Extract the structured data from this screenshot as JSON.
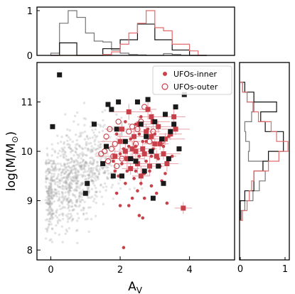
{
  "chart_data": [
    {
      "id": "main",
      "type": "scatter",
      "xlabel": "A",
      "xlabel_sub": "V",
      "ylabel": "log(M/M",
      "ylabel_symbol": "⊙",
      "ylabel_end": ")",
      "xlim": [
        -0.4,
        5.3
      ],
      "ylim": [
        7.8,
        11.8
      ],
      "xticks": [
        "0",
        "2",
        "4"
      ],
      "xtick_values": [
        0,
        2,
        4
      ],
      "yticks": [
        "8",
        "9",
        "10",
        "11"
      ],
      "ytick_values": [
        8,
        9,
        10,
        11
      ],
      "legend_position": "top-right",
      "legend": [
        {
          "label": "UFOs-inner",
          "marker": "filled-circle",
          "color": "#c8414a"
        },
        {
          "label": "UFOs-outer",
          "marker": "open-circle",
          "color": "#c8414a"
        }
      ],
      "series": [
        {
          "name": "UFOs-inner",
          "marker": "filled-square",
          "color": "#c8414a",
          "points": [
            [
              3.82,
              8.85
            ],
            [
              2.55,
              10.55
            ],
            [
              2.9,
              10.3
            ],
            [
              3.1,
              10.5
            ],
            [
              2.25,
              10.8
            ],
            [
              2.8,
              10.85
            ],
            [
              3.0,
              10.15
            ],
            [
              2.65,
              10.05
            ],
            [
              2.4,
              10.3
            ],
            [
              3.3,
              10.25
            ],
            [
              2.7,
              9.95
            ],
            [
              2.15,
              10.0
            ],
            [
              3.6,
              10.45
            ],
            [
              2.95,
              10.6
            ],
            [
              2.5,
              9.75
            ],
            [
              3.15,
              10.15
            ],
            [
              2.35,
              10.05
            ],
            [
              2.85,
              9.7
            ],
            [
              3.25,
              9.95
            ],
            [
              2.0,
              10.2
            ],
            [
              2.6,
              9.5
            ],
            [
              3.45,
              10.35
            ],
            [
              2.75,
              10.4
            ],
            [
              2.2,
              9.85
            ],
            [
              3.05,
              9.9
            ],
            [
              2.45,
              10.0
            ],
            [
              3.55,
              10.7
            ],
            [
              2.9,
              10.7
            ],
            [
              2.05,
              10.45
            ],
            [
              1.85,
              9.9
            ],
            [
              2.3,
              9.65
            ],
            [
              3.35,
              9.75
            ]
          ]
        },
        {
          "name": "UFOs-inner",
          "marker": "filled-circle",
          "color": "#c8414a",
          "points": [
            [
              2.45,
              10.1
            ],
            [
              2.65,
              10.2
            ],
            [
              2.95,
              10.05
            ],
            [
              3.1,
              9.85
            ],
            [
              2.3,
              10.25
            ],
            [
              2.55,
              9.9
            ],
            [
              2.75,
              10.2
            ],
            [
              2.2,
              9.6
            ],
            [
              2.05,
              9.75
            ],
            [
              2.85,
              9.6
            ],
            [
              3.25,
              10.1
            ],
            [
              2.6,
              9.35
            ],
            [
              2.4,
              9.45
            ],
            [
              1.95,
              9.5
            ],
            [
              2.15,
              9.35
            ],
            [
              2.5,
              9.2
            ],
            [
              2.35,
              9.05
            ],
            [
              2.9,
              9.3
            ],
            [
              3.05,
              9.15
            ],
            [
              2.7,
              9.05
            ],
            [
              2.25,
              8.9
            ],
            [
              2.0,
              8.9
            ],
            [
              2.55,
              8.7
            ],
            [
              1.9,
              9.15
            ],
            [
              2.65,
              8.65
            ],
            [
              3.35,
              8.95
            ],
            [
              3.2,
              9.4
            ],
            [
              2.1,
              8.05
            ],
            [
              1.8,
              9.8
            ],
            [
              2.8,
              10.45
            ],
            [
              3.4,
              10.3
            ],
            [
              3.0,
              10.35
            ],
            [
              2.45,
              10.55
            ],
            [
              2.6,
              10.7
            ],
            [
              2.15,
              10.6
            ],
            [
              1.9,
              10.35
            ],
            [
              2.35,
              9.85
            ],
            [
              2.9,
              9.9
            ],
            [
              3.15,
              9.7
            ],
            [
              2.75,
              9.8
            ],
            [
              2.55,
              10.35
            ],
            [
              2.25,
              10.1
            ],
            [
              1.85,
              9.6
            ],
            [
              2.7,
              9.55
            ],
            [
              3.3,
              9.55
            ],
            [
              2.45,
              9.6
            ],
            [
              2.1,
              10.05
            ],
            [
              2.85,
              10.0
            ],
            [
              3.5,
              9.9
            ],
            [
              2.0,
              9.95
            ]
          ]
        },
        {
          "name": "UFOs-outer",
          "marker": "open-circle",
          "color": "#c8414a",
          "points": [
            [
              1.6,
              10.3
            ],
            [
              1.75,
              10.05
            ],
            [
              1.65,
              9.8
            ],
            [
              1.85,
              10.15
            ],
            [
              2.25,
              10.4
            ],
            [
              1.95,
              10.6
            ],
            [
              1.55,
              10.0
            ],
            [
              2.6,
              10.6
            ],
            [
              2.85,
              10.2
            ],
            [
              2.05,
              9.85
            ],
            [
              1.8,
              9.9
            ],
            [
              2.35,
              10.5
            ],
            [
              1.7,
              10.45
            ],
            [
              2.95,
              10.4
            ],
            [
              2.45,
              10.15
            ],
            [
              3.2,
              10.2
            ],
            [
              1.9,
              9.7
            ],
            [
              2.7,
              10.9
            ],
            [
              1.45,
              9.95
            ],
            [
              2.5,
              10.45
            ]
          ]
        },
        {
          "name": "black squares",
          "marker": "filled-square",
          "color": "#1a1a1a",
          "points": [
            [
              0.25,
              11.55
            ],
            [
              3.85,
              11.15
            ],
            [
              0.05,
              10.5
            ],
            [
              1.25,
              10.55
            ],
            [
              1.65,
              10.95
            ],
            [
              1.75,
              10.85
            ],
            [
              2.5,
              11.0
            ],
            [
              2.8,
              11.05
            ],
            [
              3.0,
              10.6
            ],
            [
              3.3,
              10.75
            ],
            [
              3.6,
              10.9
            ],
            [
              2.15,
              10.2
            ],
            [
              2.6,
              10.55
            ],
            [
              3.2,
              10.25
            ],
            [
              3.45,
              10.4
            ],
            [
              2.9,
              10.0
            ],
            [
              3.7,
              10.05
            ],
            [
              2.3,
              9.85
            ],
            [
              1.9,
              10.45
            ],
            [
              2.75,
              10.3
            ],
            [
              3.1,
              9.7
            ],
            [
              1.5,
              9.75
            ],
            [
              2.05,
              9.5
            ],
            [
              2.45,
              9.8
            ],
            [
              3.4,
              9.85
            ],
            [
              1.05,
              9.35
            ],
            [
              1.0,
              9.15
            ],
            [
              1.8,
              9.5
            ],
            [
              2.95,
              9.05
            ],
            [
              3.25,
              9.35
            ],
            [
              1.6,
              10.1
            ],
            [
              2.7,
              9.6
            ],
            [
              1.95,
              11.0
            ],
            [
              3.55,
              10.55
            ]
          ]
        },
        {
          "name": "gray background",
          "marker": "filled-circle",
          "color": "#9e9e9e",
          "generated": true,
          "x_center": 0.65,
          "y_center": 9.45,
          "x_spread": 0.5,
          "y_spread": 0.45,
          "count": 900
        }
      ]
    },
    {
      "id": "top-histogram",
      "type": "histogram",
      "yticks": [
        "0",
        "1"
      ],
      "ytick_values": [
        0,
        1
      ],
      "ylim": [
        0,
        1.08
      ],
      "xlim": [
        -0.4,
        5.3
      ],
      "bin_edges": [
        0.0,
        0.25,
        0.5,
        0.75,
        1.0,
        1.25,
        1.5,
        1.75,
        2.0,
        2.25,
        2.5,
        2.75,
        3.0,
        3.25,
        3.5,
        3.75,
        4.0,
        4.25,
        4.5
      ],
      "series": [
        {
          "name": "gray",
          "color": "#777777",
          "values": [
            0.05,
            0.72,
            1.0,
            0.85,
            0.5,
            0.32,
            0.3,
            0.12,
            0.05,
            0.02,
            0.01,
            0,
            0,
            0.04,
            0.02,
            0,
            0,
            0
          ]
        },
        {
          "name": "black",
          "color": "#111111",
          "values": [
            0,
            0.28,
            0.28,
            0.0,
            0.0,
            0,
            0.15,
            0.15,
            0.35,
            0.35,
            0.7,
            0.7,
            0.35,
            0.35,
            0.12,
            0.12,
            0,
            0
          ]
        },
        {
          "name": "red",
          "color": "#e36a6a",
          "values": [
            0,
            0,
            0,
            0,
            0,
            0,
            0.02,
            0.08,
            0.25,
            0.5,
            0.72,
            1.0,
            0.62,
            0.55,
            0.25,
            0.25,
            0.1,
            0
          ]
        }
      ]
    },
    {
      "id": "right-histogram",
      "type": "histogram",
      "orientation": "horizontal",
      "xticks": [
        "0",
        "1"
      ],
      "xtick_values": [
        0,
        1
      ],
      "xlim": [
        0,
        1.08
      ],
      "ylim": [
        7.8,
        11.8
      ],
      "bin_edges": [
        8.6,
        8.8,
        9.0,
        9.2,
        9.4,
        9.6,
        9.8,
        10.0,
        10.2,
        10.4,
        10.6,
        10.8,
        11.0,
        11.2,
        11.4
      ],
      "series": [
        {
          "name": "gray",
          "color": "#777777",
          "values": [
            0.02,
            0.1,
            0.28,
            0.42,
            0.55,
            0.5,
            0.18,
            0.2,
            0.12,
            0.1,
            0.25,
            0.3,
            0.15,
            0.05
          ]
        },
        {
          "name": "black",
          "color": "#111111",
          "values": [
            0,
            0,
            0.1,
            0.3,
            0.3,
            0.5,
            0.62,
            0.95,
            0.95,
            0.55,
            0.45,
            0.8,
            0.3,
            0.1
          ]
        },
        {
          "name": "red",
          "color": "#e36a6a",
          "values": [
            0.05,
            0.15,
            0.2,
            0.25,
            0.3,
            0.62,
            0.85,
            1.05,
            0.8,
            0.68,
            0.4,
            0.28,
            0.15,
            0.05
          ]
        }
      ]
    }
  ]
}
